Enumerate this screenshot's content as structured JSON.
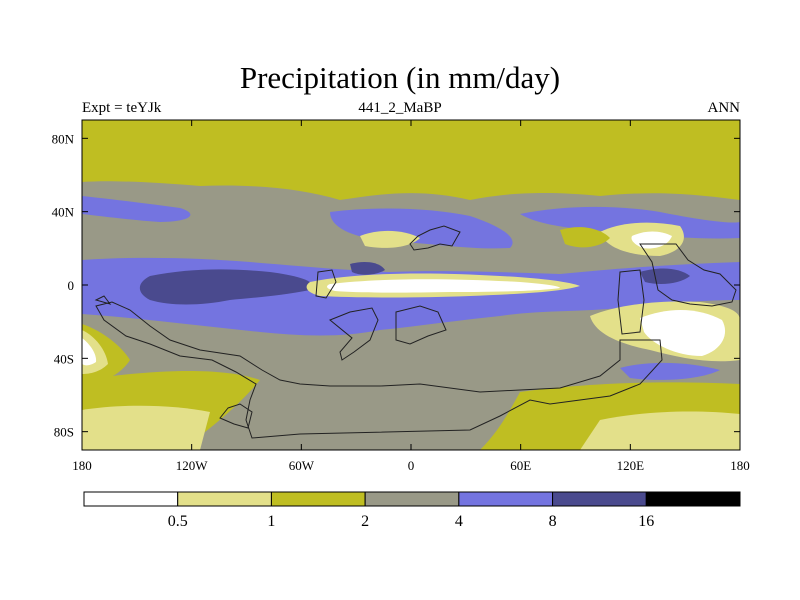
{
  "title": "Precipitation (in mm/day)",
  "subtitle_left": "Expt = teYJk",
  "subtitle_center": "441_2_MaBP",
  "subtitle_right": "ANN",
  "colors": {
    "c0": "#ffffff",
    "c1": "#e3e08a",
    "c2": "#bfbe22",
    "c3": "#999987",
    "c4": "#7474e0",
    "c5": "#4a4a8e",
    "c6": "#000000"
  },
  "chart_data": {
    "type": "heatmap",
    "title": "Precipitation (in mm/day)",
    "units": "mm/day",
    "xlim": [
      -180,
      180
    ],
    "ylim": [
      -90,
      90
    ],
    "x_ticks": [
      {
        "value": -180,
        "label": "180"
      },
      {
        "value": -120,
        "label": "120W"
      },
      {
        "value": -60,
        "label": "60W"
      },
      {
        "value": 0,
        "label": "0"
      },
      {
        "value": 60,
        "label": "60E"
      },
      {
        "value": 120,
        "label": "120E"
      },
      {
        "value": 180,
        "label": "180"
      }
    ],
    "y_ticks": [
      {
        "value": 80,
        "label": "80N"
      },
      {
        "value": 40,
        "label": "40N"
      },
      {
        "value": 0,
        "label": "0"
      },
      {
        "value": -40,
        "label": "40S"
      },
      {
        "value": -80,
        "label": "80S"
      }
    ],
    "colorbar": {
      "levels": [
        "0.5",
        "1",
        "2",
        "4",
        "8",
        "16"
      ],
      "colors": [
        "#ffffff",
        "#e3e08a",
        "#bfbe22",
        "#999987",
        "#7474e0",
        "#4a4a8e",
        "#000000"
      ]
    }
  }
}
